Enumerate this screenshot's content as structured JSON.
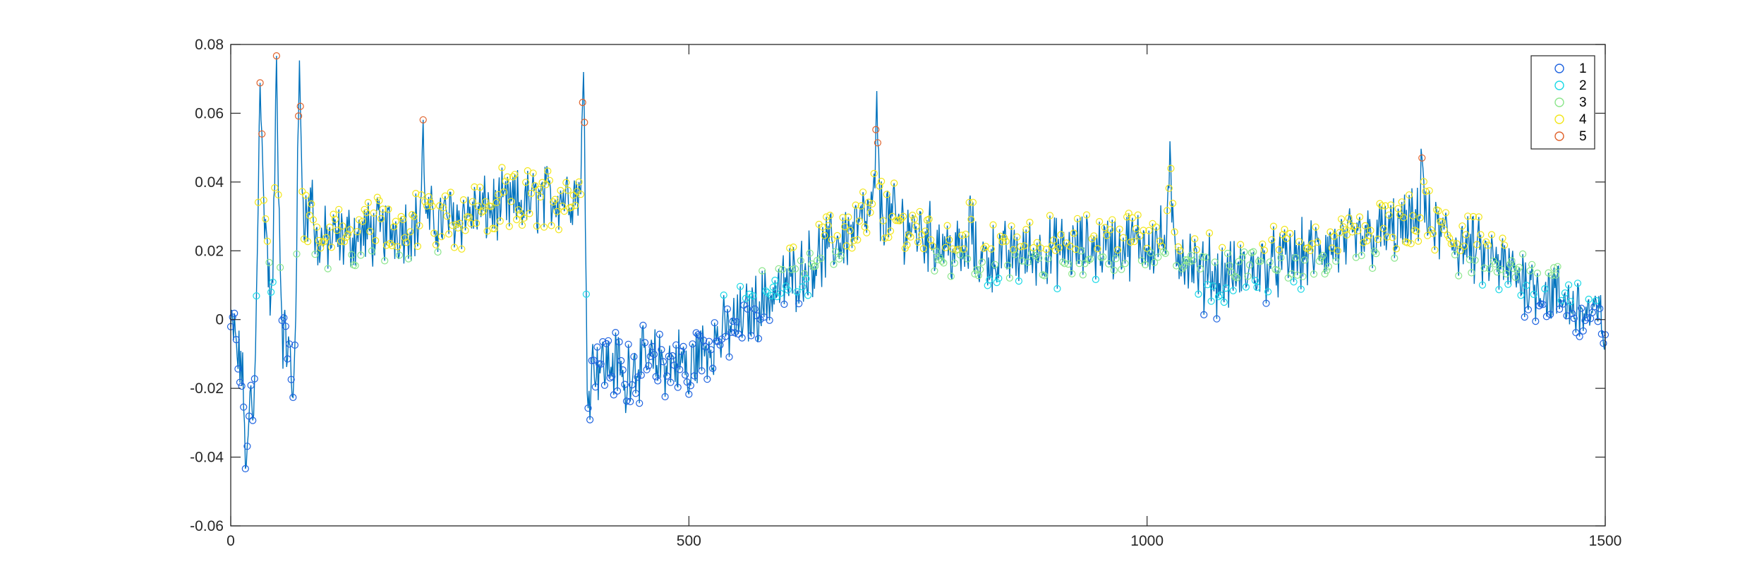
{
  "chart_data": {
    "type": "scatter",
    "title": "",
    "xlabel": "",
    "ylabel": "",
    "xlim": [
      0,
      1500
    ],
    "ylim": [
      -0.06,
      0.08
    ],
    "xticks": [
      0,
      500,
      1000,
      1500
    ],
    "xtick_labels": [
      "0",
      "500",
      "1000",
      "1500"
    ],
    "yticks": [
      -0.06,
      -0.04,
      -0.02,
      0,
      0.02,
      0.04,
      0.06,
      0.08
    ],
    "ytick_labels": [
      "-0.06",
      "-0.04",
      "-0.02",
      "0",
      "0.02",
      "0.04",
      "0.06",
      "0.08"
    ],
    "grid": false,
    "box": true,
    "line_color": "#0072BD",
    "legend": {
      "location": "top-right",
      "entries": [
        {
          "label": "1",
          "color": "#1F63E0"
        },
        {
          "label": "2",
          "color": "#19D9E6"
        },
        {
          "label": "3",
          "color": "#8CE68C"
        },
        {
          "label": "4",
          "color": "#F2E61A"
        },
        {
          "label": "5",
          "color": "#E0622B"
        }
      ]
    },
    "series_note_sample_points": [
      {
        "x": 0,
        "y": -0.003
      },
      {
        "x": 8,
        "y": -0.012
      },
      {
        "x": 15,
        "y": -0.028
      },
      {
        "x": 18,
        "y": -0.041
      },
      {
        "x": 25,
        "y": -0.03
      },
      {
        "x": 32,
        "y": 0.074
      },
      {
        "x": 38,
        "y": 0.03
      },
      {
        "x": 45,
        "y": 0.005
      },
      {
        "x": 50,
        "y": 0.074
      },
      {
        "x": 57,
        "y": -0.005
      },
      {
        "x": 68,
        "y": -0.025
      },
      {
        "x": 75,
        "y": 0.072
      },
      {
        "x": 88,
        "y": 0.04
      },
      {
        "x": 210,
        "y": 0.051
      },
      {
        "x": 385,
        "y": 0.068
      },
      {
        "x": 390,
        "y": -0.023
      },
      {
        "x": 430,
        "y": -0.024
      },
      {
        "x": 500,
        "y": -0.022
      },
      {
        "x": 705,
        "y": 0.058
      },
      {
        "x": 808,
        "y": 0.032
      },
      {
        "x": 1025,
        "y": 0.042
      },
      {
        "x": 1067,
        "y": 0.02
      },
      {
        "x": 1300,
        "y": 0.051
      },
      {
        "x": 1500,
        "y": -0.002
      }
    ]
  }
}
